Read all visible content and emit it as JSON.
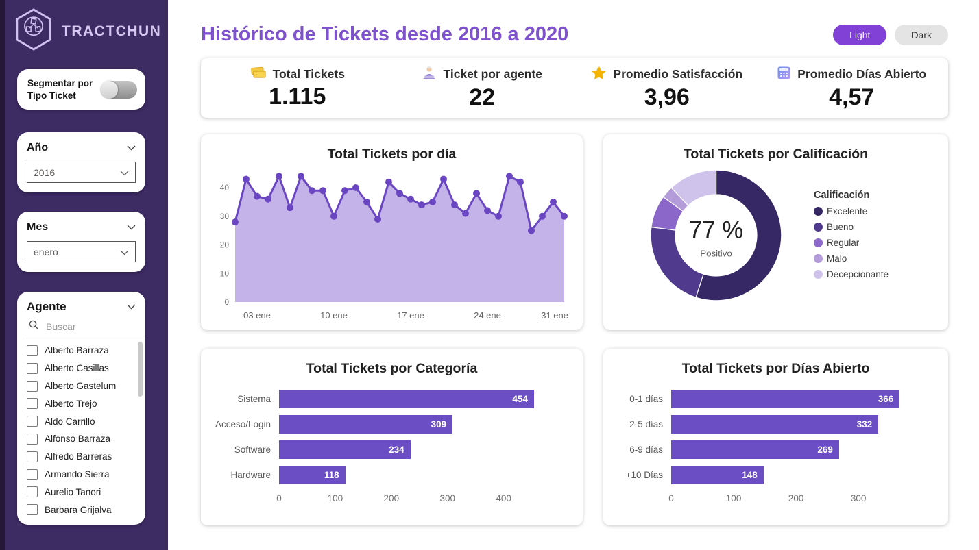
{
  "sidebar": {
    "brand": "TRACTCHUN",
    "segmenter": {
      "label": "Segmentar por Tipo Ticket"
    },
    "filters": [
      {
        "title": "Año",
        "value": "2016"
      },
      {
        "title": "Mes",
        "value": "enero"
      }
    ],
    "agent": {
      "title": "Agente",
      "search_placeholder": "Buscar",
      "items": [
        "Alberto Barraza",
        "Alberto Casillas",
        "Alberto Gastelum",
        "Alberto Trejo",
        "Aldo Carrillo",
        "Alfonso Barraza",
        "Alfredo Barreras",
        "Armando Sierra",
        "Aurelio Tanori",
        "Barbara Grijalva"
      ]
    }
  },
  "header": {
    "title": "Histórico de Tickets desde 2016 a 2020",
    "theme": {
      "light": "Light",
      "dark": "Dark"
    }
  },
  "kpis": [
    {
      "icon": "tickets-icon",
      "label": "Total Tickets",
      "value": "1.115"
    },
    {
      "icon": "agent-icon",
      "label": "Ticket por agente",
      "value": "22"
    },
    {
      "icon": "star-icon",
      "label": "Promedio Satisfacción",
      "value": "3,96"
    },
    {
      "icon": "calendar-icon",
      "label": "Promedio Días Abierto",
      "value": "4,57"
    }
  ],
  "colors": {
    "sidebar_bg": "#3d2b64",
    "sidebar_edge": "#241737",
    "title_purple": "#7e52cc",
    "accent": "#6b4ec4",
    "area_fill": "#c4b3e9",
    "light_button": "#8140d6"
  },
  "chart_data": [
    {
      "id": "daily",
      "type": "area",
      "title": "Total Tickets por día",
      "x_days": [
        1,
        2,
        3,
        4,
        5,
        6,
        7,
        8,
        9,
        10,
        11,
        12,
        13,
        14,
        15,
        16,
        17,
        18,
        19,
        20,
        21,
        22,
        23,
        24,
        25,
        26,
        27,
        28,
        29,
        30,
        31
      ],
      "values": [
        28,
        43,
        37,
        36,
        44,
        33,
        44,
        39,
        39,
        30,
        39,
        40,
        35,
        29,
        42,
        38,
        36,
        34,
        35,
        43,
        34,
        31,
        38,
        32,
        30,
        44,
        42,
        25,
        30,
        35,
        30
      ],
      "y_ticks": [
        0,
        10,
        20,
        30,
        40
      ],
      "ylim": [
        0,
        46
      ],
      "x_tick_days": [
        3,
        10,
        17,
        24,
        31
      ],
      "x_tick_labels": [
        "03 ene",
        "10 ene",
        "17 ene",
        "24 ene",
        "31 ene"
      ],
      "line_color": "#6b46c3",
      "fill_color": "#c4b3e9"
    },
    {
      "id": "rating",
      "type": "donut",
      "title": "Total Tickets por Calificación",
      "center_value": "77 %",
      "center_label": "Positivo",
      "legend_title": "Calificación",
      "slices": [
        {
          "label": "Excelente",
          "pct": 55,
          "color": "#352864"
        },
        {
          "label": "Bueno",
          "pct": 22,
          "color": "#503a8e"
        },
        {
          "label": "Regular",
          "pct": 8,
          "color": "#8a67c8"
        },
        {
          "label": "Malo",
          "pct": 3,
          "color": "#b49cdb"
        },
        {
          "label": "Decepcionante",
          "pct": 12,
          "color": "#cfc3ec"
        }
      ]
    },
    {
      "id": "category",
      "type": "bar",
      "title": "Total Tickets por Categoría",
      "categories": [
        "Sistema",
        "Acceso/Login",
        "Software",
        "Hardware"
      ],
      "values": [
        454,
        309,
        234,
        118
      ],
      "x_ticks": [
        0,
        100,
        200,
        300,
        400
      ],
      "xmax": 470,
      "label_col": 100
    },
    {
      "id": "days_open",
      "type": "bar",
      "title": "Total Tickets por Días Abierto",
      "categories": [
        "0-1 días",
        "2-5 días",
        "6-9 días",
        "+10 Días"
      ],
      "values": [
        366,
        332,
        269,
        148
      ],
      "x_ticks": [
        0,
        100,
        200,
        300
      ],
      "xmax": 380,
      "label_col": 85
    }
  ]
}
